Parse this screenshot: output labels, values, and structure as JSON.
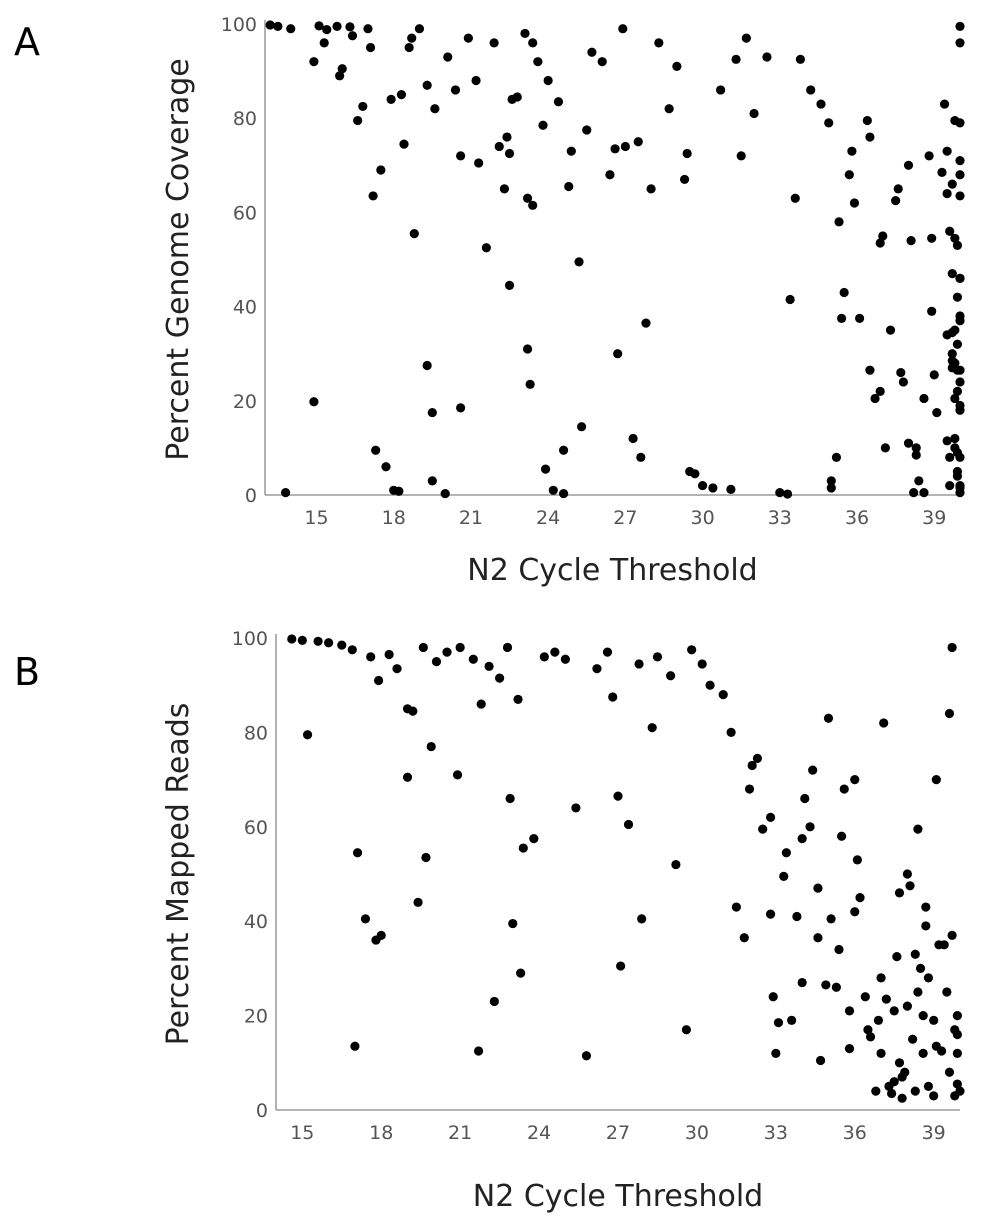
{
  "panels": [
    {
      "letter": "A"
    },
    {
      "letter": "B"
    }
  ],
  "colors": {
    "points": "#000000",
    "axis": "#888888",
    "tick_text": "#555555",
    "title_text": "#222222"
  },
  "chart_data": [
    {
      "type": "scatter",
      "panel": "A",
      "title": "",
      "xlabel": "N2 Cycle Threshold",
      "ylabel": "Percent Genome Coverage",
      "xlim": [
        13,
        40
      ],
      "ylim": [
        0,
        100
      ],
      "xticks": [
        15,
        18,
        21,
        24,
        27,
        30,
        33,
        36,
        39
      ],
      "yticks": [
        0,
        20,
        40,
        60,
        80,
        100
      ],
      "grid": false,
      "legend": "none",
      "points": [
        [
          13.2,
          99.8
        ],
        [
          13.5,
          99.5
        ],
        [
          14.0,
          99.0
        ],
        [
          13.8,
          0.5
        ],
        [
          14.9,
          92
        ],
        [
          14.9,
          19.8
        ],
        [
          15.1,
          99.6
        ],
        [
          15.4,
          98.8
        ],
        [
          15.3,
          96
        ],
        [
          15.8,
          99.5
        ],
        [
          16.0,
          90.5
        ],
        [
          15.9,
          89
        ],
        [
          16.3,
          99.4
        ],
        [
          16.4,
          97.5
        ],
        [
          16.6,
          79.5
        ],
        [
          16.8,
          82.5
        ],
        [
          17.0,
          99
        ],
        [
          17.1,
          95
        ],
        [
          17.2,
          63.5
        ],
        [
          17.5,
          69
        ],
        [
          17.3,
          9.5
        ],
        [
          17.7,
          6
        ],
        [
          17.9,
          84
        ],
        [
          18.0,
          1
        ],
        [
          18.2,
          0.8
        ],
        [
          18.3,
          85
        ],
        [
          18.4,
          74.5
        ],
        [
          18.6,
          95
        ],
        [
          18.7,
          97
        ],
        [
          18.8,
          55.5
        ],
        [
          19.0,
          99
        ],
        [
          19.3,
          87
        ],
        [
          19.6,
          82
        ],
        [
          19.5,
          17.5
        ],
        [
          19.3,
          27.5
        ],
        [
          19.5,
          3
        ],
        [
          20.0,
          0.3
        ],
        [
          20.1,
          93
        ],
        [
          20.4,
          86
        ],
        [
          20.6,
          72
        ],
        [
          20.6,
          18.5
        ],
        [
          20.9,
          97
        ],
        [
          21.2,
          88
        ],
        [
          21.3,
          70.5
        ],
        [
          21.6,
          52.5
        ],
        [
          21.9,
          96
        ],
        [
          22.1,
          74
        ],
        [
          22.3,
          65
        ],
        [
          22.4,
          76
        ],
        [
          22.5,
          72.5
        ],
        [
          22.5,
          44.5
        ],
        [
          22.6,
          84
        ],
        [
          22.8,
          84.5
        ],
        [
          23.1,
          98
        ],
        [
          23.2,
          31
        ],
        [
          23.3,
          23.5
        ],
        [
          23.4,
          61.5
        ],
        [
          23.2,
          63
        ],
        [
          23.4,
          96
        ],
        [
          23.6,
          92
        ],
        [
          23.8,
          78.5
        ],
        [
          24.0,
          88
        ],
        [
          23.9,
          5.5
        ],
        [
          24.2,
          1
        ],
        [
          24.4,
          83.5
        ],
        [
          24.6,
          0.3
        ],
        [
          24.6,
          9.5
        ],
        [
          24.8,
          65.5
        ],
        [
          24.9,
          73
        ],
        [
          25.2,
          49.5
        ],
        [
          25.3,
          14.5
        ],
        [
          25.5,
          77.5
        ],
        [
          25.7,
          94
        ],
        [
          26.1,
          92
        ],
        [
          26.4,
          68
        ],
        [
          26.6,
          73.5
        ],
        [
          26.7,
          30
        ],
        [
          26.9,
          99
        ],
        [
          27.0,
          74
        ],
        [
          27.3,
          12
        ],
        [
          27.5,
          75
        ],
        [
          27.6,
          8
        ],
        [
          27.8,
          36.5
        ],
        [
          28.0,
          65
        ],
        [
          28.3,
          96
        ],
        [
          28.7,
          82
        ],
        [
          29.0,
          91
        ],
        [
          29.3,
          67
        ],
        [
          29.4,
          72.5
        ],
        [
          29.5,
          5
        ],
        [
          29.7,
          4.5
        ],
        [
          30.0,
          2
        ],
        [
          30.4,
          1.5
        ],
        [
          30.7,
          86
        ],
        [
          31.1,
          1.2
        ],
        [
          31.3,
          92.5
        ],
        [
          31.5,
          72
        ],
        [
          31.7,
          97
        ],
        [
          32.0,
          81
        ],
        [
          32.5,
          93
        ],
        [
          33.0,
          0.5
        ],
        [
          33.3,
          0.2
        ],
        [
          33.4,
          41.5
        ],
        [
          33.6,
          63
        ],
        [
          33.8,
          92.5
        ],
        [
          34.2,
          86
        ],
        [
          34.6,
          83
        ],
        [
          34.9,
          79
        ],
        [
          35.0,
          1.5
        ],
        [
          35.0,
          3
        ],
        [
          35.2,
          8
        ],
        [
          35.3,
          58
        ],
        [
          35.4,
          37.5
        ],
        [
          35.5,
          43
        ],
        [
          35.7,
          68
        ],
        [
          35.8,
          73
        ],
        [
          35.9,
          62
        ],
        [
          36.1,
          37.5
        ],
        [
          36.4,
          79.5
        ],
        [
          36.5,
          76
        ],
        [
          36.5,
          26.5
        ],
        [
          36.7,
          20.5
        ],
        [
          36.9,
          22
        ],
        [
          36.9,
          53.5
        ],
        [
          37.0,
          55
        ],
        [
          37.1,
          10
        ],
        [
          37.3,
          35
        ],
        [
          37.5,
          62.5
        ],
        [
          37.6,
          65
        ],
        [
          37.7,
          26
        ],
        [
          37.8,
          24
        ],
        [
          38.0,
          70
        ],
        [
          38.0,
          11
        ],
        [
          38.1,
          54
        ],
        [
          38.2,
          0.5
        ],
        [
          38.3,
          10
        ],
        [
          38.3,
          8.5
        ],
        [
          38.4,
          3
        ],
        [
          38.6,
          0.5
        ],
        [
          38.6,
          20.5
        ],
        [
          38.8,
          72
        ],
        [
          38.9,
          54.5
        ],
        [
          38.9,
          39
        ],
        [
          39.0,
          25.5
        ],
        [
          39.1,
          17.5
        ],
        [
          39.3,
          68.5
        ],
        [
          39.5,
          64
        ],
        [
          39.7,
          66
        ],
        [
          39.6,
          56
        ],
        [
          39.7,
          30
        ],
        [
          39.8,
          20.5
        ],
        [
          39.9,
          22
        ],
        [
          39.5,
          34
        ],
        [
          39.7,
          28.5
        ],
        [
          39.9,
          32
        ],
        [
          39.7,
          34.5
        ],
        [
          39.8,
          54.5
        ],
        [
          39.9,
          53
        ],
        [
          39.5,
          11.5
        ],
        [
          39.8,
          10
        ],
        [
          39.9,
          4
        ],
        [
          39.6,
          2
        ],
        [
          40.2,
          63.5
        ],
        [
          40.0,
          0.5
        ],
        [
          39.8,
          35
        ],
        [
          39.9,
          5
        ],
        [
          39.6,
          8
        ],
        [
          39.8,
          12
        ],
        [
          39.5,
          73
        ],
        [
          39.9,
          42
        ],
        [
          40.2,
          38
        ],
        [
          40.0,
          37
        ],
        [
          39.7,
          27
        ],
        [
          39.9,
          26.5
        ],
        [
          39.4,
          83
        ],
        [
          39.8,
          79.5
        ],
        [
          39.9,
          9
        ],
        [
          39.7,
          47
        ],
        [
          40.3,
          46
        ],
        [
          40.2,
          46
        ],
        [
          39.8,
          28
        ],
        [
          40.0,
          1.5
        ],
        [
          40.3,
          2
        ],
        [
          40.4,
          79
        ],
        [
          40.6,
          71
        ],
        [
          40.7,
          68
        ],
        [
          40.5,
          26.5
        ],
        [
          40.6,
          24
        ],
        [
          40.4,
          18
        ],
        [
          40.5,
          19
        ],
        [
          40.6,
          8
        ],
        [
          40.5,
          99.5
        ],
        [
          40.0,
          96
        ]
      ]
    },
    {
      "type": "scatter",
      "panel": "B",
      "title": "",
      "xlabel": "N2 Cycle Threshold",
      "ylabel": "Percent Mapped Reads",
      "xlim": [
        14,
        40
      ],
      "ylim": [
        0,
        100
      ],
      "xticks": [
        15,
        18,
        21,
        24,
        27,
        30,
        33,
        36,
        39
      ],
      "yticks": [
        0,
        20,
        40,
        60,
        80,
        100
      ],
      "grid": false,
      "legend": "none",
      "points": [
        [
          14.6,
          99.8
        ],
        [
          15.0,
          99.5
        ],
        [
          15.2,
          79.5
        ],
        [
          15.6,
          99.3
        ],
        [
          16.0,
          99
        ],
        [
          16.5,
          98.5
        ],
        [
          16.9,
          97.5
        ],
        [
          17.1,
          54.5
        ],
        [
          17.0,
          13.5
        ],
        [
          17.4,
          40.5
        ],
        [
          17.6,
          96
        ],
        [
          17.8,
          36
        ],
        [
          17.9,
          91
        ],
        [
          18.0,
          37
        ],
        [
          18.3,
          96.5
        ],
        [
          18.6,
          93.5
        ],
        [
          19.0,
          85
        ],
        [
          19.0,
          70.5
        ],
        [
          19.2,
          84.5
        ],
        [
          19.4,
          44
        ],
        [
          19.6,
          98
        ],
        [
          19.7,
          53.5
        ],
        [
          19.9,
          77
        ],
        [
          20.1,
          95
        ],
        [
          20.5,
          97
        ],
        [
          20.9,
          71
        ],
        [
          21.0,
          98
        ],
        [
          21.5,
          95.5
        ],
        [
          21.7,
          12.5
        ],
        [
          21.8,
          86
        ],
        [
          22.1,
          94
        ],
        [
          22.3,
          23
        ],
        [
          22.5,
          91.5
        ],
        [
          22.8,
          98
        ],
        [
          22.9,
          66
        ],
        [
          23.0,
          39.5
        ],
        [
          23.2,
          87
        ],
        [
          23.3,
          29
        ],
        [
          23.4,
          55.5
        ],
        [
          23.8,
          57.5
        ],
        [
          24.2,
          96
        ],
        [
          24.6,
          97
        ],
        [
          25.0,
          95.5
        ],
        [
          25.4,
          64
        ],
        [
          25.8,
          11.5
        ],
        [
          26.2,
          93.5
        ],
        [
          26.6,
          97
        ],
        [
          26.8,
          87.5
        ],
        [
          27.0,
          66.5
        ],
        [
          27.1,
          30.5
        ],
        [
          27.4,
          60.5
        ],
        [
          27.8,
          94.5
        ],
        [
          27.9,
          40.5
        ],
        [
          28.3,
          81
        ],
        [
          28.5,
          96
        ],
        [
          29.0,
          92
        ],
        [
          29.2,
          52
        ],
        [
          29.6,
          17
        ],
        [
          29.8,
          97.5
        ],
        [
          30.2,
          94.5
        ],
        [
          30.5,
          90
        ],
        [
          31.0,
          88
        ],
        [
          31.3,
          80
        ],
        [
          31.5,
          43
        ],
        [
          31.8,
          36.5
        ],
        [
          32.0,
          68
        ],
        [
          32.1,
          73
        ],
        [
          32.3,
          74.5
        ],
        [
          32.5,
          59.5
        ],
        [
          32.8,
          62
        ],
        [
          32.8,
          41.5
        ],
        [
          32.9,
          24
        ],
        [
          33.0,
          12
        ],
        [
          33.1,
          18.5
        ],
        [
          33.3,
          49.5
        ],
        [
          33.4,
          54.5
        ],
        [
          33.6,
          19
        ],
        [
          33.8,
          41
        ],
        [
          34.0,
          27
        ],
        [
          34.0,
          57.5
        ],
        [
          34.1,
          66
        ],
        [
          34.3,
          60
        ],
        [
          34.4,
          72
        ],
        [
          34.6,
          36.5
        ],
        [
          34.6,
          47
        ],
        [
          34.7,
          10.5
        ],
        [
          34.9,
          26.5
        ],
        [
          35.0,
          83
        ],
        [
          35.1,
          40.5
        ],
        [
          35.3,
          26
        ],
        [
          35.4,
          34
        ],
        [
          35.5,
          58
        ],
        [
          35.6,
          68
        ],
        [
          35.8,
          13
        ],
        [
          35.8,
          21
        ],
        [
          36.0,
          42
        ],
        [
          36.0,
          70
        ],
        [
          36.1,
          53
        ],
        [
          36.2,
          45
        ],
        [
          36.4,
          24
        ],
        [
          36.5,
          17
        ],
        [
          36.6,
          15.5
        ],
        [
          36.8,
          4
        ],
        [
          36.9,
          19
        ],
        [
          37.0,
          12
        ],
        [
          37.0,
          28
        ],
        [
          37.1,
          82
        ],
        [
          37.2,
          23.5
        ],
        [
          37.3,
          5
        ],
        [
          37.4,
          3.5
        ],
        [
          37.5,
          6
        ],
        [
          37.5,
          21
        ],
        [
          37.6,
          32.5
        ],
        [
          37.7,
          46
        ],
        [
          37.7,
          10
        ],
        [
          37.8,
          7
        ],
        [
          37.8,
          2.5
        ],
        [
          37.9,
          8
        ],
        [
          38.0,
          22
        ],
        [
          38.0,
          50
        ],
        [
          38.1,
          47.5
        ],
        [
          38.2,
          15
        ],
        [
          38.3,
          4
        ],
        [
          38.3,
          33
        ],
        [
          38.4,
          25
        ],
        [
          38.4,
          59.5
        ],
        [
          38.5,
          30
        ],
        [
          38.6,
          20
        ],
        [
          38.6,
          12
        ],
        [
          38.7,
          39
        ],
        [
          38.7,
          43
        ],
        [
          38.8,
          5
        ],
        [
          38.8,
          28
        ],
        [
          39.0,
          3
        ],
        [
          39.0,
          19
        ],
        [
          39.1,
          13.5
        ],
        [
          39.1,
          70
        ],
        [
          39.2,
          35
        ],
        [
          39.3,
          12.5
        ],
        [
          39.4,
          35
        ],
        [
          39.5,
          25
        ],
        [
          39.6,
          84
        ],
        [
          39.7,
          37
        ],
        [
          39.8,
          17
        ],
        [
          39.9,
          20
        ],
        [
          39.9,
          16
        ],
        [
          39.9,
          12
        ],
        [
          39.9,
          5.5
        ],
        [
          40.0,
          4
        ],
        [
          39.8,
          3
        ],
        [
          39.6,
          8
        ],
        [
          39.7,
          98
        ]
      ]
    }
  ]
}
